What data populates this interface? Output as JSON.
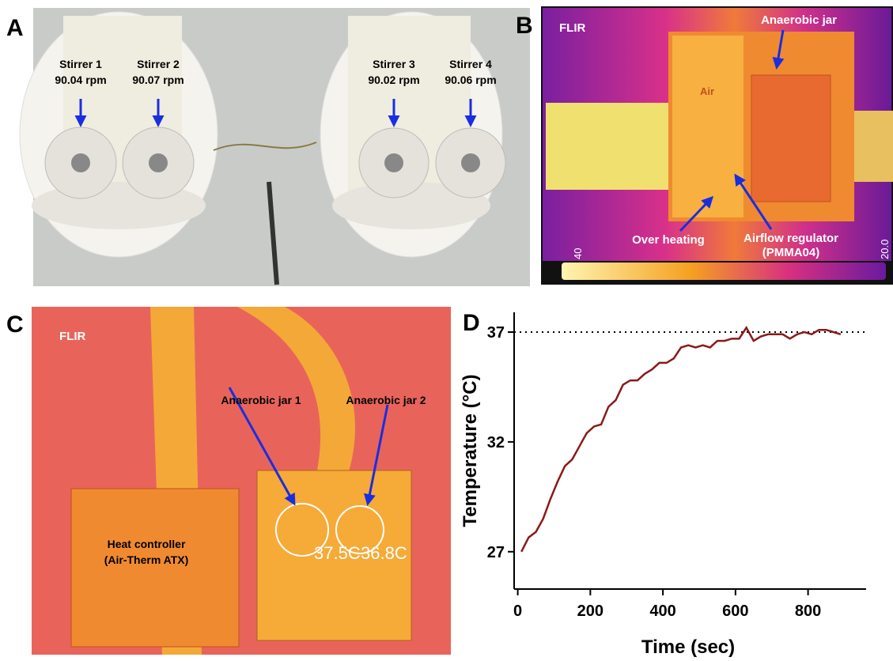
{
  "panel_labels": [
    "A",
    "B",
    "C",
    "D"
  ],
  "panel_a": {
    "stirrers": [
      {
        "name": "Stirrer 1",
        "speed": "90.04 rpm"
      },
      {
        "name": "Stirrer 2",
        "speed": "90.07 rpm"
      },
      {
        "name": "Stirrer 3",
        "speed": "90.02 rpm"
      },
      {
        "name": "Stirrer 4",
        "speed": "90.06 rpm"
      }
    ]
  },
  "panel_b": {
    "brand": "FLIR",
    "device_text": "Air",
    "labels": {
      "jar": "Anaerobic jar",
      "overheating": "Over heating",
      "regulator": [
        "Airflow regulator",
        "(PMMA04)"
      ]
    },
    "scale_min_label": "40",
    "scale_max_label": "20.0"
  },
  "panel_c": {
    "brand": "FLIR",
    "jar1": "Anaerobic jar 1",
    "jar2": "Anaerobic jar 2",
    "controller": [
      "Heat controller",
      "(Air-Therm ATX)"
    ],
    "readings": [
      "37.5C",
      "36.8C"
    ]
  },
  "chart_data": {
    "type": "line",
    "x_label": "Time (sec)",
    "y_label": "Temperature (°C)",
    "color": "#8b1a1a",
    "x": [
      10,
      30,
      50,
      70,
      90,
      110,
      130,
      150,
      170,
      190,
      210,
      230,
      250,
      270,
      290,
      310,
      330,
      350,
      370,
      390,
      410,
      430,
      450,
      470,
      490,
      510,
      530,
      550,
      570,
      590,
      610,
      630,
      650,
      670,
      690,
      710,
      730,
      750,
      770,
      790,
      810,
      830,
      850,
      870,
      890
    ],
    "values": [
      27,
      27.65,
      27.9,
      28.5,
      29.4,
      30.2,
      30.9,
      31.2,
      31.8,
      32.4,
      32.7,
      32.8,
      33.6,
      33.9,
      34.6,
      34.8,
      34.8,
      35.1,
      35.3,
      35.6,
      35.6,
      35.8,
      36.3,
      36.4,
      36.3,
      36.4,
      36.3,
      36.6,
      36.6,
      36.7,
      36.7,
      37.2,
      36.6,
      36.8,
      36.9,
      36.9,
      36.9,
      36.7,
      36.9,
      37.0,
      36.9,
      37.1,
      37.1,
      37.0,
      36.9
    ],
    "xlim": [
      -10,
      960
    ],
    "ylim": [
      25.3,
      37.9
    ],
    "xticks": [
      0,
      200,
      400,
      600,
      800
    ],
    "yticks": [
      27,
      32,
      37
    ],
    "reference_line": 37
  }
}
